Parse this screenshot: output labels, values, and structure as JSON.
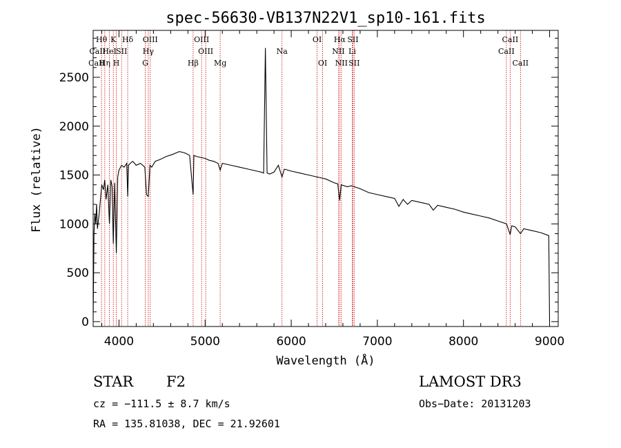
{
  "chart_data": {
    "type": "line",
    "title": "spec-56630-VB137N22V1_sp10-161.fits",
    "xlabel": "Wavelength (Å)",
    "ylabel": "Flux (relative)",
    "xlim": [
      3700,
      9100
    ],
    "ylim": [
      -50,
      2980
    ],
    "x_ticks": [
      4000,
      5000,
      6000,
      7000,
      8000,
      9000
    ],
    "x_tick_labels": [
      "4000",
      "5000",
      "6000",
      "7000",
      "8000",
      "9000"
    ],
    "y_ticks": [
      0,
      500,
      1000,
      1500,
      2000,
      2500
    ],
    "y_tick_labels": [
      "0",
      "500",
      "1000",
      "1500",
      "2000",
      "2500"
    ],
    "spectrum": {
      "name": "flux",
      "color": "#000000",
      "x": [
        3700,
        3710,
        3720,
        3730,
        3740,
        3750,
        3770,
        3800,
        3820,
        3835,
        3850,
        3870,
        3889,
        3905,
        3920,
        3934,
        3950,
        3969,
        3985,
        4000,
        4030,
        4060,
        4090,
        4101,
        4110,
        4130,
        4160,
        4200,
        4250,
        4300,
        4320,
        4340,
        4360,
        4380,
        4420,
        4480,
        4550,
        4620,
        4700,
        4750,
        4780,
        4820,
        4861,
        4870,
        4900,
        4950,
        5000,
        5050,
        5100,
        5150,
        5175,
        5200,
        5300,
        5400,
        5500,
        5600,
        5650,
        5680,
        5700,
        5720,
        5750,
        5800,
        5850,
        5893,
        5920,
        6000,
        6100,
        6200,
        6300,
        6400,
        6500,
        6540,
        6563,
        6580,
        6650,
        6700,
        6800,
        6900,
        7000,
        7100,
        7200,
        7250,
        7300,
        7350,
        7400,
        7500,
        7600,
        7650,
        7700,
        7800,
        7900,
        8000,
        8100,
        8200,
        8300,
        8400,
        8500,
        8542,
        8560,
        8600,
        8662,
        8700,
        8800,
        8900,
        8990,
        9000
      ],
      "y": [
        20,
        900,
        1100,
        1000,
        1200,
        950,
        1100,
        1400,
        1350,
        1450,
        1250,
        1400,
        1000,
        1450,
        1380,
        800,
        1420,
        700,
        1480,
        1550,
        1600,
        1580,
        1620,
        1280,
        1600,
        1620,
        1640,
        1600,
        1620,
        1580,
        1300,
        1280,
        1600,
        1580,
        1640,
        1660,
        1690,
        1710,
        1740,
        1730,
        1720,
        1700,
        1300,
        1700,
        1690,
        1680,
        1670,
        1650,
        1640,
        1620,
        1550,
        1620,
        1600,
        1580,
        1560,
        1540,
        1530,
        1520,
        2800,
        1520,
        1510,
        1530,
        1600,
        1480,
        1560,
        1540,
        1520,
        1500,
        1480,
        1460,
        1420,
        1410,
        1240,
        1400,
        1380,
        1390,
        1360,
        1320,
        1300,
        1280,
        1260,
        1180,
        1250,
        1200,
        1240,
        1220,
        1200,
        1140,
        1190,
        1170,
        1150,
        1120,
        1100,
        1080,
        1060,
        1030,
        1000,
        890,
        980,
        970,
        900,
        950,
        930,
        910,
        880,
        0
      ]
    },
    "line_markers": [
      {
        "label": "Hθ",
        "x": 3797,
        "row": 0
      },
      {
        "label": "CaII",
        "x": 3750,
        "row": 1,
        "draw_line": false
      },
      {
        "label": "CaII",
        "x": 3740,
        "row": 2,
        "draw_line": false
      },
      {
        "label": "K",
        "x": 3934,
        "row": 0
      },
      {
        "label": "HeI",
        "x": 3889,
        "row": 1
      },
      {
        "label": "Hη",
        "x": 3835,
        "row": 2
      },
      {
        "label": "Hδ",
        "x": 4101,
        "row": 0
      },
      {
        "label": "SII",
        "x": 4030,
        "row": 1
      },
      {
        "label": "H",
        "x": 3969,
        "row": 2
      },
      {
        "label": "OIII",
        "x": 4363,
        "row": 0
      },
      {
        "label": "Hγ",
        "x": 4340,
        "row": 1
      },
      {
        "label": "G",
        "x": 4305,
        "row": 2
      },
      {
        "label": "OIII",
        "x": 4959,
        "row": 0
      },
      {
        "label": "OIII",
        "x": 5007,
        "row": 1
      },
      {
        "label": "Hβ",
        "x": 4861,
        "row": 2
      },
      {
        "label": "Mg",
        "x": 5175,
        "row": 2
      },
      {
        "label": "Na",
        "x": 5893,
        "row": 1
      },
      {
        "label": "OI",
        "x": 6300,
        "row": 0
      },
      {
        "label": "OI",
        "x": 6364,
        "row": 2
      },
      {
        "label": "Hα",
        "x": 6563,
        "row": 0
      },
      {
        "label": "SII",
        "x": 6716,
        "row": 0
      },
      {
        "label": "NII",
        "x": 6548,
        "row": 1
      },
      {
        "label": "Li",
        "x": 6708,
        "row": 1
      },
      {
        "label": "NII",
        "x": 6583,
        "row": 2
      },
      {
        "label": "SII",
        "x": 6731,
        "row": 2
      },
      {
        "label": "CaII",
        "x": 8542,
        "row": 0
      },
      {
        "label": "CaII",
        "x": 8498,
        "row": 1
      },
      {
        "label": "CaII",
        "x": 8662,
        "row": 2
      }
    ],
    "marker_color": "#cc0000"
  },
  "info": {
    "class_label": "STAR",
    "subclass": "F2",
    "survey": "LAMOST DR3",
    "cz": "cz = −111.5 ± 8.7 km/s",
    "obs_date": "Obs−Date: 20131203",
    "coords": "RA = 135.81038, DEC =  21.92601"
  }
}
